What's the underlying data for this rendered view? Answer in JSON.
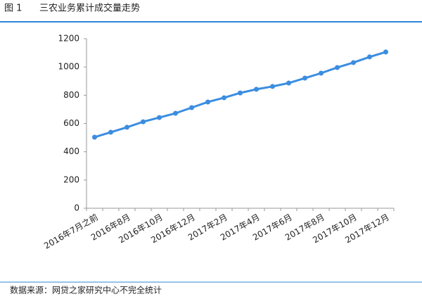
{
  "chart_data": {
    "type": "line",
    "figure_label": "图 1",
    "title": "三农业务累计成交量走势",
    "categories": [
      "2016年7月之前",
      null,
      "2016年8月",
      null,
      "2016年10月",
      null,
      "2016年12月",
      null,
      "2017年2月",
      null,
      "2017年4月",
      null,
      "2017年6月",
      null,
      "2017年8月",
      null,
      "2017年10月",
      null,
      "2017年12月"
    ],
    "series": [
      {
        "color": "#3b8de0",
        "values": [
          503,
          538,
          573,
          612,
          642,
          672,
          712,
          752,
          782,
          816,
          842,
          862,
          886,
          921,
          956,
          996,
          1031,
          1071,
          1106
        ]
      }
    ],
    "ylim": [
      0,
      1200
    ],
    "yticks": [
      0,
      200,
      400,
      600,
      800,
      1000,
      1200
    ],
    "grid": false,
    "source": "数据来源：网贷之家研究中心不完全统计"
  }
}
